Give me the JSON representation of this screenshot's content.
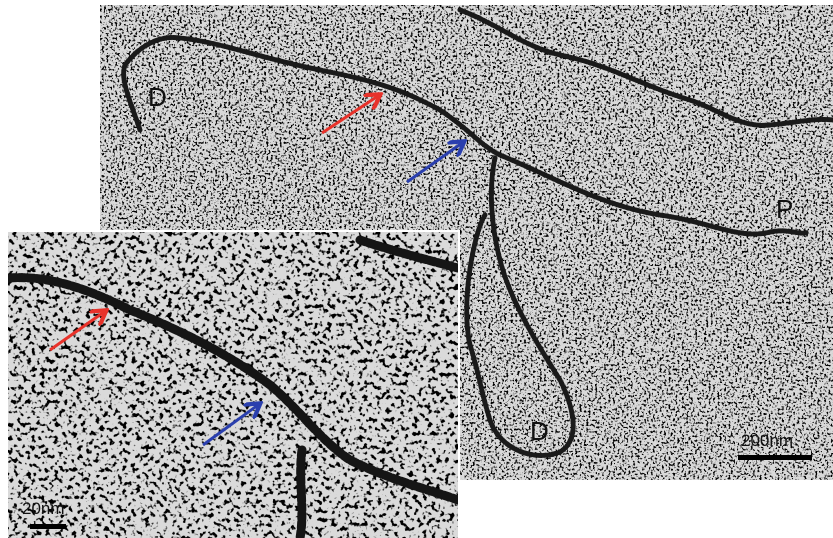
{
  "main": {
    "labels": [
      "D",
      "P",
      "D"
    ],
    "scale_bar": "200nm"
  },
  "inset": {
    "scale_bar": "20nm"
  }
}
